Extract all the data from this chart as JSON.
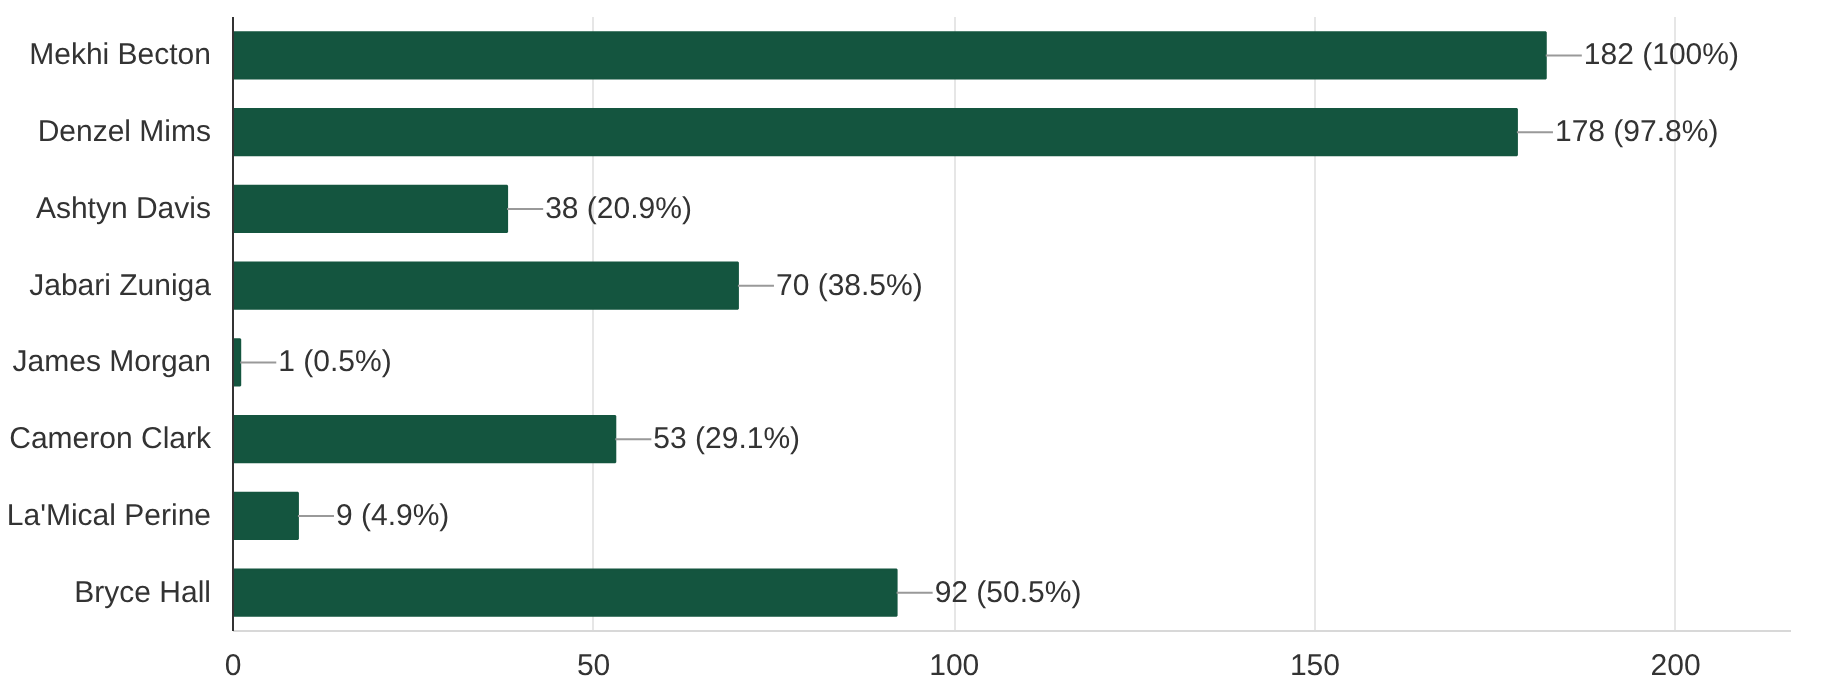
{
  "chart_data": {
    "type": "bar",
    "orientation": "horizontal",
    "categories": [
      "Mekhi Becton",
      "Denzel Mims",
      "Ashtyn Davis",
      "Jabari Zuniga",
      "James Morgan",
      "Cameron Clark",
      "La'Mical Perine",
      "Bryce Hall"
    ],
    "values": [
      182,
      178,
      38,
      70,
      1,
      53,
      9,
      92
    ],
    "value_labels": [
      "182 (100%)",
      "178 (97.8%)",
      "38 (20.9%)",
      "70 (38.5%)",
      "1 (0.5%)",
      "53 (29.1%)",
      "9 (4.9%)",
      "92 (50.5%)"
    ],
    "color": "#14553f",
    "xlim": [
      0,
      216
    ],
    "xticks": [
      0,
      50,
      100,
      150,
      200
    ],
    "grid": "x"
  }
}
